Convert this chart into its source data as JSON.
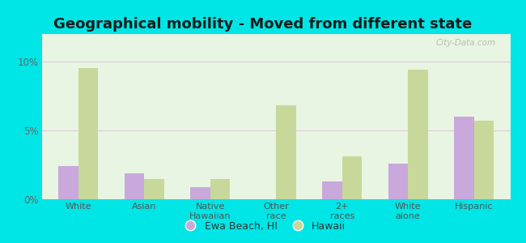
{
  "title": "Geographical mobility - Moved from different state",
  "categories": [
    "White",
    "Asian",
    "Native\nHawaiian",
    "Other\nrace",
    "2+\nraces",
    "White\nalone",
    "Hispanic"
  ],
  "ewa_beach": [
    2.4,
    1.9,
    0.9,
    0.0,
    1.3,
    2.6,
    6.0
  ],
  "hawaii": [
    9.5,
    1.5,
    1.5,
    6.8,
    3.1,
    9.4,
    5.7
  ],
  "ewa_color": "#c9a8dc",
  "hawaii_color": "#c8d89a",
  "background_color": "#00e5e5",
  "plot_bg": "#e8f5e2",
  "yticks": [
    0,
    5,
    10
  ],
  "ylim": [
    0,
    12
  ],
  "legend_labels": [
    "Ewa Beach, HI",
    "Hawaii"
  ],
  "bar_width": 0.3,
  "title_fontsize": 13,
  "grid_color": "#ddccdd"
}
